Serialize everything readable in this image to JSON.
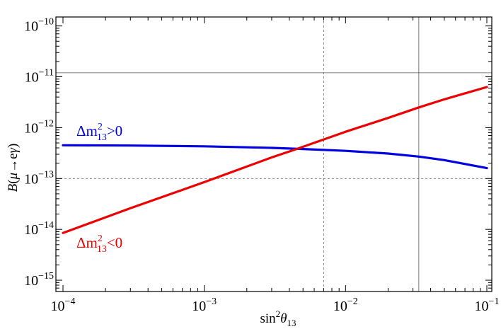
{
  "chart_data": {
    "type": "line",
    "xlabel": "sin²θ₁₃",
    "ylabel": "B(μ→eγ)",
    "x_scale": "log",
    "y_scale": "log",
    "xlim": [
      0.0001,
      0.1
    ],
    "ylim": [
      6e-16,
      1.5e-10
    ],
    "x_ticks": [
      {
        "value": 0.0001,
        "mant": "10",
        "exp": "−4"
      },
      {
        "value": 0.001,
        "mant": "10",
        "exp": "−3"
      },
      {
        "value": 0.01,
        "mant": "10",
        "exp": "−2"
      },
      {
        "value": 0.1,
        "mant": "10",
        "exp": "−1"
      }
    ],
    "y_ticks": [
      {
        "value": 1e-15,
        "mant": "10",
        "exp": "−15"
      },
      {
        "value": 1e-14,
        "mant": "10",
        "exp": "−14"
      },
      {
        "value": 1e-13,
        "mant": "10",
        "exp": "−13"
      },
      {
        "value": 1e-12,
        "mant": "10",
        "exp": "−12"
      },
      {
        "value": 1e-11,
        "mant": "10",
        "exp": "−11"
      },
      {
        "value": 1e-10,
        "mant": "10",
        "exp": "−10"
      }
    ],
    "reference_lines": [
      {
        "orientation": "vertical",
        "value": 0.007,
        "style": "dashed"
      },
      {
        "orientation": "vertical",
        "value": 0.033,
        "style": "solid"
      },
      {
        "orientation": "horizontal",
        "value": 1.2e-11,
        "style": "solid"
      },
      {
        "orientation": "horizontal",
        "value": 1e-13,
        "style": "dashed"
      }
    ],
    "series": [
      {
        "name": "Δm²₁₃>0",
        "label_parts": {
          "base": "Δm",
          "sup": "2",
          "sub": "13",
          "rel": ">0"
        },
        "color": "#0000e0",
        "x": [
          0.0001,
          0.0003,
          0.001,
          0.003,
          0.005,
          0.01,
          0.02,
          0.033,
          0.05,
          0.1
        ],
        "y": [
          4.5e-13,
          4.45e-13,
          4.3e-13,
          4e-13,
          3.8e-13,
          3.5e-13,
          3.1e-13,
          2.7e-13,
          2.3e-13,
          1.6e-13
        ]
      },
      {
        "name": "Δm²₁₃<0",
        "label_parts": {
          "base": "Δm",
          "sup": "2",
          "sub": "13",
          "rel": "<0"
        },
        "color": "#ee0000",
        "x": [
          0.0001,
          0.0003,
          0.001,
          0.003,
          0.0045,
          0.01,
          0.02,
          0.033,
          0.05,
          0.1
        ],
        "y": [
          8.5e-15,
          2.6e-14,
          8.5e-14,
          2.6e-13,
          3.8e-13,
          8.3e-13,
          1.55e-12,
          2.5e-12,
          3.6e-12,
          6.3e-12
        ]
      }
    ]
  }
}
